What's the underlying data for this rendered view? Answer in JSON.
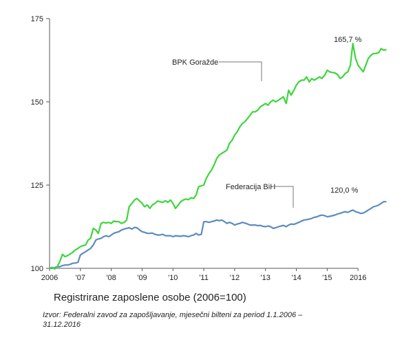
{
  "caption": "Registrirane zaposlene osobe (2006=100)",
  "source": "Izvor: Federalni zavod za zapošljavanje, mjesečni bilteni za period 1.1.2006 – 31.12.2016",
  "chart_data": {
    "type": "line",
    "ylim": [
      100,
      175
    ],
    "yticks": [
      100,
      125,
      150,
      175
    ],
    "ytick_labels": [
      "100",
      "125",
      "150",
      "175"
    ],
    "xlim": [
      2006.0,
      2017.0
    ],
    "xtick_values": [
      2006,
      2007,
      2008,
      2009,
      2010,
      2011,
      2012,
      2013,
      2014,
      2015,
      2016
    ],
    "xtick_labels": [
      "2006",
      "'07",
      "'08",
      "'09",
      "'10",
      "'11",
      "'12",
      "'13",
      "'14",
      "'15",
      "2016"
    ],
    "grid": false,
    "series": [
      {
        "name": "BPK Goražde",
        "color": "#3cd63c",
        "end_label": "165,7 %",
        "points": [
          [
            2006.0,
            100
          ],
          [
            2006.08,
            100.3
          ],
          [
            2006.17,
            99.8
          ],
          [
            2006.25,
            100.5
          ],
          [
            2006.33,
            102
          ],
          [
            2006.42,
            104.2
          ],
          [
            2006.5,
            103.5
          ],
          [
            2006.58,
            103.8
          ],
          [
            2006.67,
            104.3
          ],
          [
            2006.75,
            104.8
          ],
          [
            2006.83,
            105.5
          ],
          [
            2006.92,
            106
          ],
          [
            2007.0,
            106.5
          ],
          [
            2007.08,
            106.8
          ],
          [
            2007.17,
            107
          ],
          [
            2007.25,
            108.5
          ],
          [
            2007.33,
            109
          ],
          [
            2007.42,
            112
          ],
          [
            2007.5,
            111.5
          ],
          [
            2007.58,
            110.5
          ],
          [
            2007.67,
            113.5
          ],
          [
            2007.75,
            113.8
          ],
          [
            2007.83,
            113.6
          ],
          [
            2007.92,
            113.8
          ],
          [
            2008.0,
            113.5
          ],
          [
            2008.08,
            114.2
          ],
          [
            2008.17,
            114
          ],
          [
            2008.25,
            114
          ],
          [
            2008.33,
            113.5
          ],
          [
            2008.42,
            113.8
          ],
          [
            2008.5,
            114.5
          ],
          [
            2008.58,
            118.5
          ],
          [
            2008.67,
            119.5
          ],
          [
            2008.75,
            120.5
          ],
          [
            2008.83,
            121
          ],
          [
            2008.92,
            120.2
          ],
          [
            2009.0,
            119.5
          ],
          [
            2009.08,
            118.5
          ],
          [
            2009.17,
            119
          ],
          [
            2009.25,
            118
          ],
          [
            2009.33,
            119
          ],
          [
            2009.42,
            119.5
          ],
          [
            2009.5,
            120.2
          ],
          [
            2009.58,
            120
          ],
          [
            2009.67,
            119.8
          ],
          [
            2009.75,
            120.3
          ],
          [
            2009.83,
            119.8
          ],
          [
            2009.92,
            120.5
          ],
          [
            2010.0,
            119.5
          ],
          [
            2010.08,
            118
          ],
          [
            2010.17,
            119
          ],
          [
            2010.25,
            120
          ],
          [
            2010.33,
            120.5
          ],
          [
            2010.42,
            120.8
          ],
          [
            2010.5,
            120.6
          ],
          [
            2010.58,
            121.2
          ],
          [
            2010.67,
            121
          ],
          [
            2010.75,
            122
          ],
          [
            2010.83,
            124.5
          ],
          [
            2010.92,
            124.8
          ],
          [
            2011.0,
            125
          ],
          [
            2011.08,
            127
          ],
          [
            2011.17,
            128.5
          ],
          [
            2011.25,
            129.5
          ],
          [
            2011.33,
            131
          ],
          [
            2011.42,
            133
          ],
          [
            2011.5,
            134
          ],
          [
            2011.58,
            134.5
          ],
          [
            2011.67,
            135
          ],
          [
            2011.75,
            135.5
          ],
          [
            2011.83,
            137.5
          ],
          [
            2011.92,
            138.5
          ],
          [
            2012.0,
            140
          ],
          [
            2012.08,
            141
          ],
          [
            2012.17,
            142.5
          ],
          [
            2012.25,
            143.5
          ],
          [
            2012.33,
            144
          ],
          [
            2012.42,
            145
          ],
          [
            2012.5,
            146
          ],
          [
            2012.58,
            147
          ],
          [
            2012.67,
            147
          ],
          [
            2012.75,
            147.5
          ],
          [
            2012.83,
            148.5
          ],
          [
            2012.92,
            149
          ],
          [
            2013.0,
            149.5
          ],
          [
            2013.08,
            149
          ],
          [
            2013.17,
            150
          ],
          [
            2013.25,
            150.5
          ],
          [
            2013.33,
            150
          ],
          [
            2013.42,
            150.5
          ],
          [
            2013.5,
            151
          ],
          [
            2013.58,
            151.5
          ],
          [
            2013.67,
            149.5
          ],
          [
            2013.75,
            153.5
          ],
          [
            2013.83,
            152
          ],
          [
            2013.92,
            153.5
          ],
          [
            2014.0,
            155
          ],
          [
            2014.08,
            156
          ],
          [
            2014.17,
            156.5
          ],
          [
            2014.25,
            156.5
          ],
          [
            2014.33,
            157.5
          ],
          [
            2014.42,
            156
          ],
          [
            2014.5,
            157
          ],
          [
            2014.58,
            156.5
          ],
          [
            2014.67,
            157
          ],
          [
            2014.75,
            157.5
          ],
          [
            2014.83,
            157
          ],
          [
            2014.92,
            158
          ],
          [
            2015.0,
            159.5
          ],
          [
            2015.08,
            159
          ],
          [
            2015.17,
            158.8
          ],
          [
            2015.25,
            158.7
          ],
          [
            2015.33,
            158.2
          ],
          [
            2015.42,
            157
          ],
          [
            2015.5,
            157.5
          ],
          [
            2015.58,
            158.5
          ],
          [
            2015.67,
            159
          ],
          [
            2015.75,
            161
          ],
          [
            2015.83,
            167.5
          ],
          [
            2015.92,
            163
          ],
          [
            2016.0,
            161
          ],
          [
            2016.08,
            160
          ],
          [
            2016.17,
            159
          ],
          [
            2016.25,
            161
          ],
          [
            2016.33,
            163
          ],
          [
            2016.42,
            164
          ],
          [
            2016.5,
            164.5
          ],
          [
            2016.58,
            164.5
          ],
          [
            2016.67,
            164.8
          ],
          [
            2016.75,
            166
          ],
          [
            2016.83,
            165.5
          ],
          [
            2016.92,
            165.7
          ]
        ]
      },
      {
        "name": "Federacija BiH",
        "color": "#5b8bbf",
        "end_label": "120,0 %",
        "points": [
          [
            2006.0,
            100
          ],
          [
            2006.08,
            100
          ],
          [
            2006.17,
            100.2
          ],
          [
            2006.25,
            100.5
          ],
          [
            2006.33,
            100.5
          ],
          [
            2006.42,
            100.8
          ],
          [
            2006.5,
            101
          ],
          [
            2006.58,
            101
          ],
          [
            2006.67,
            101.2
          ],
          [
            2006.75,
            101.5
          ],
          [
            2006.83,
            101.6
          ],
          [
            2006.92,
            101.8
          ],
          [
            2007.0,
            104
          ],
          [
            2007.08,
            104.5
          ],
          [
            2007.17,
            105
          ],
          [
            2007.25,
            105.5
          ],
          [
            2007.33,
            106
          ],
          [
            2007.42,
            107
          ],
          [
            2007.5,
            108.5
          ],
          [
            2007.58,
            108.8
          ],
          [
            2007.67,
            109
          ],
          [
            2007.75,
            109.5
          ],
          [
            2007.83,
            109.8
          ],
          [
            2007.92,
            109.5
          ],
          [
            2008.0,
            110
          ],
          [
            2008.08,
            110.5
          ],
          [
            2008.17,
            110.8
          ],
          [
            2008.25,
            111
          ],
          [
            2008.33,
            111.5
          ],
          [
            2008.42,
            111.8
          ],
          [
            2008.5,
            112
          ],
          [
            2008.58,
            112.2
          ],
          [
            2008.67,
            111.8
          ],
          [
            2008.75,
            112.3
          ],
          [
            2008.83,
            112.2
          ],
          [
            2008.92,
            111.5
          ],
          [
            2009.0,
            111
          ],
          [
            2009.08,
            110.8
          ],
          [
            2009.17,
            110.5
          ],
          [
            2009.25,
            110.5
          ],
          [
            2009.33,
            110.6
          ],
          [
            2009.42,
            110.2
          ],
          [
            2009.5,
            110
          ],
          [
            2009.58,
            110
          ],
          [
            2009.67,
            110.2
          ],
          [
            2009.75,
            109.8
          ],
          [
            2009.83,
            109.8
          ],
          [
            2009.92,
            109.8
          ],
          [
            2010.0,
            109.5
          ],
          [
            2010.08,
            109.8
          ],
          [
            2010.17,
            109.7
          ],
          [
            2010.25,
            109.6
          ],
          [
            2010.33,
            109.8
          ],
          [
            2010.42,
            109.7
          ],
          [
            2010.5,
            109.5
          ],
          [
            2010.58,
            109.8
          ],
          [
            2010.67,
            110
          ],
          [
            2010.75,
            110.5
          ],
          [
            2010.83,
            110
          ],
          [
            2010.92,
            110.2
          ],
          [
            2011.0,
            114
          ],
          [
            2011.08,
            114
          ],
          [
            2011.17,
            113.8
          ],
          [
            2011.25,
            114
          ],
          [
            2011.33,
            114.2
          ],
          [
            2011.42,
            114.5
          ],
          [
            2011.5,
            114.3
          ],
          [
            2011.58,
            114.5
          ],
          [
            2011.67,
            114
          ],
          [
            2011.75,
            113.5
          ],
          [
            2011.83,
            113.8
          ],
          [
            2011.92,
            113.5
          ],
          [
            2012.0,
            113
          ],
          [
            2012.08,
            113.3
          ],
          [
            2012.17,
            113.5
          ],
          [
            2012.25,
            113.8
          ],
          [
            2012.33,
            113.6
          ],
          [
            2012.42,
            113.3
          ],
          [
            2012.5,
            113
          ],
          [
            2012.58,
            113
          ],
          [
            2012.67,
            113
          ],
          [
            2012.75,
            112.8
          ],
          [
            2012.83,
            112.9
          ],
          [
            2012.92,
            112.6
          ],
          [
            2013.0,
            112.5
          ],
          [
            2013.08,
            112.7
          ],
          [
            2013.17,
            112.5
          ],
          [
            2013.25,
            112
          ],
          [
            2013.33,
            112.2
          ],
          [
            2013.42,
            112.5
          ],
          [
            2013.5,
            112.7
          ],
          [
            2013.58,
            112.9
          ],
          [
            2013.67,
            112.5
          ],
          [
            2013.75,
            113
          ],
          [
            2013.83,
            113.3
          ],
          [
            2013.92,
            113.2
          ],
          [
            2014.0,
            113.5
          ],
          [
            2014.08,
            113.8
          ],
          [
            2014.17,
            114.2
          ],
          [
            2014.25,
            114.5
          ],
          [
            2014.33,
            114.6
          ],
          [
            2014.42,
            114.8
          ],
          [
            2014.5,
            115
          ],
          [
            2014.58,
            115.3
          ],
          [
            2014.67,
            115.5
          ],
          [
            2014.75,
            115.8
          ],
          [
            2014.83,
            116
          ],
          [
            2014.92,
            115.8
          ],
          [
            2015.0,
            115.5
          ],
          [
            2015.08,
            115.6
          ],
          [
            2015.17,
            115.8
          ],
          [
            2015.25,
            116
          ],
          [
            2015.33,
            116.3
          ],
          [
            2015.42,
            116.5
          ],
          [
            2015.5,
            116.8
          ],
          [
            2015.58,
            117
          ],
          [
            2015.67,
            116.8
          ],
          [
            2015.75,
            117.2
          ],
          [
            2015.83,
            117.5
          ],
          [
            2015.92,
            117
          ],
          [
            2016.0,
            116.8
          ],
          [
            2016.08,
            116.5
          ],
          [
            2016.17,
            116.6
          ],
          [
            2016.25,
            117
          ],
          [
            2016.33,
            117.5
          ],
          [
            2016.42,
            118
          ],
          [
            2016.5,
            118.5
          ],
          [
            2016.58,
            118.7
          ],
          [
            2016.67,
            119
          ],
          [
            2016.75,
            119.5
          ],
          [
            2016.83,
            120
          ],
          [
            2016.92,
            120
          ]
        ]
      }
    ]
  }
}
